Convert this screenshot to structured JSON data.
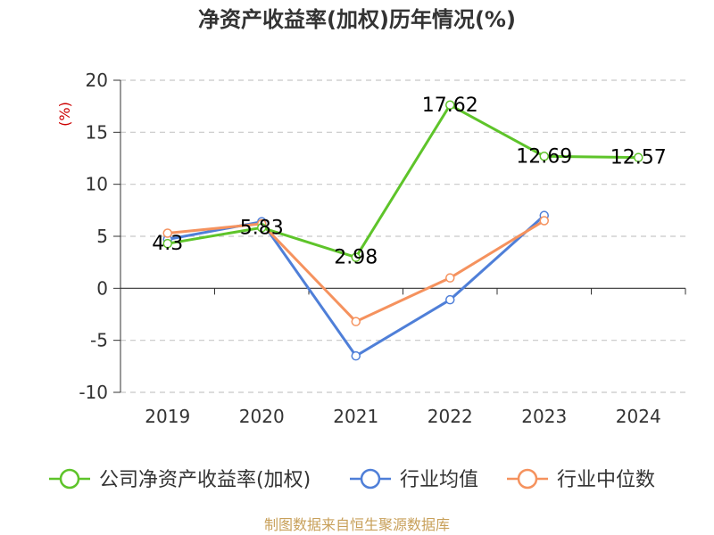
{
  "chart_data": {
    "type": "line",
    "title": "净资产收益率(加权)历年情况(%)",
    "ylabel": "(%)",
    "categories": [
      "2019",
      "2020",
      "2021",
      "2022",
      "2023",
      "2024"
    ],
    "ylim": [
      -10,
      20
    ],
    "yticks": [
      20,
      15,
      10,
      5,
      0,
      -5,
      -10
    ],
    "grid": true,
    "legend_position": "bottom",
    "series": [
      {
        "name": "公司净资产收益率(加权)",
        "color": "#5ec42a",
        "values": [
          4.3,
          5.83,
          2.98,
          17.62,
          12.69,
          12.57
        ],
        "labels": [
          "4.3",
          "5.83",
          "2.98",
          "17.62",
          "12.69",
          "12.57"
        ]
      },
      {
        "name": "行业均值",
        "color": "#4f7fd8",
        "values": [
          4.7,
          6.4,
          -6.5,
          -1.1,
          7.0,
          null
        ]
      },
      {
        "name": "行业中位数",
        "color": "#f5925e",
        "values": [
          5.3,
          6.2,
          -3.2,
          1.0,
          6.5,
          null
        ]
      }
    ]
  },
  "source": "制图数据来自恒生聚源数据库"
}
